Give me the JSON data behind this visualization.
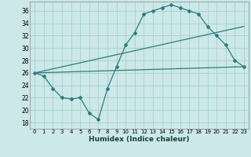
{
  "xlabel": "Humidex (Indice chaleur)",
  "bg_color": "#cce8e8",
  "line_color": "#2e7d7d",
  "grid_color": "#a8d0d0",
  "xlim": [
    -0.5,
    23.5
  ],
  "ylim": [
    17,
    37.5
  ],
  "yticks": [
    18,
    20,
    22,
    24,
    26,
    28,
    30,
    32,
    34,
    36
  ],
  "xticks": [
    0,
    1,
    2,
    3,
    4,
    5,
    6,
    7,
    8,
    9,
    10,
    11,
    12,
    13,
    14,
    15,
    16,
    17,
    18,
    19,
    20,
    21,
    22,
    23
  ],
  "main_x": [
    0,
    1,
    2,
    3,
    4,
    5,
    6,
    7,
    8,
    9,
    10,
    11,
    12,
    13,
    14,
    15,
    16,
    17,
    18,
    19,
    20,
    21,
    22,
    23
  ],
  "main_y": [
    26.0,
    25.5,
    23.5,
    22.0,
    21.8,
    22.0,
    19.5,
    18.5,
    23.5,
    27.0,
    30.5,
    32.5,
    35.5,
    36.0,
    36.5,
    37.0,
    36.5,
    36.0,
    35.5,
    33.5,
    32.0,
    30.5,
    28.0,
    27.0
  ],
  "upper_line_x": [
    0,
    23
  ],
  "upper_line_y": [
    26.0,
    33.5
  ],
  "lower_line_x": [
    0,
    23
  ],
  "lower_line_y": [
    26.0,
    27.0
  ]
}
